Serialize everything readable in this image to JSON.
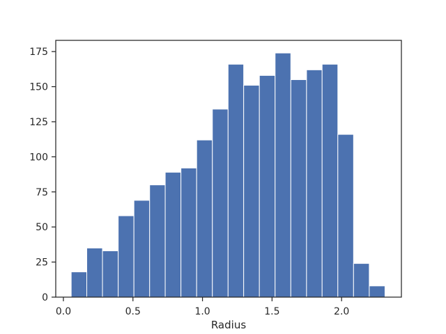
{
  "chart_data": {
    "type": "bar",
    "subtype": "histogram",
    "title": "",
    "xlabel": "Radius",
    "ylabel": "",
    "xlim": [
      -0.055,
      2.43
    ],
    "ylim": [
      0,
      183
    ],
    "xticks": [
      0.0,
      0.5,
      1.0,
      1.5,
      2.0
    ],
    "xtick_labels": [
      "0.0",
      "0.5",
      "1.0",
      "1.5",
      "2.0"
    ],
    "yticks": [
      0,
      25,
      50,
      75,
      100,
      125,
      150,
      175
    ],
    "ytick_labels": [
      "0",
      "25",
      "50",
      "75",
      "100",
      "125",
      "150",
      "175"
    ],
    "grid": false,
    "bar_color": "#4c72b0",
    "bin_edges": [
      0.056,
      0.168,
      0.281,
      0.394,
      0.507,
      0.62,
      0.732,
      0.845,
      0.958,
      1.071,
      1.184,
      1.296,
      1.409,
      1.522,
      1.635,
      1.748,
      1.86,
      1.973,
      2.086,
      2.199,
      2.312
    ],
    "counts": [
      18,
      35,
      33,
      58,
      69,
      80,
      89,
      92,
      112,
      134,
      166,
      151,
      158,
      174,
      155,
      162,
      166,
      116,
      24,
      8
    ]
  }
}
